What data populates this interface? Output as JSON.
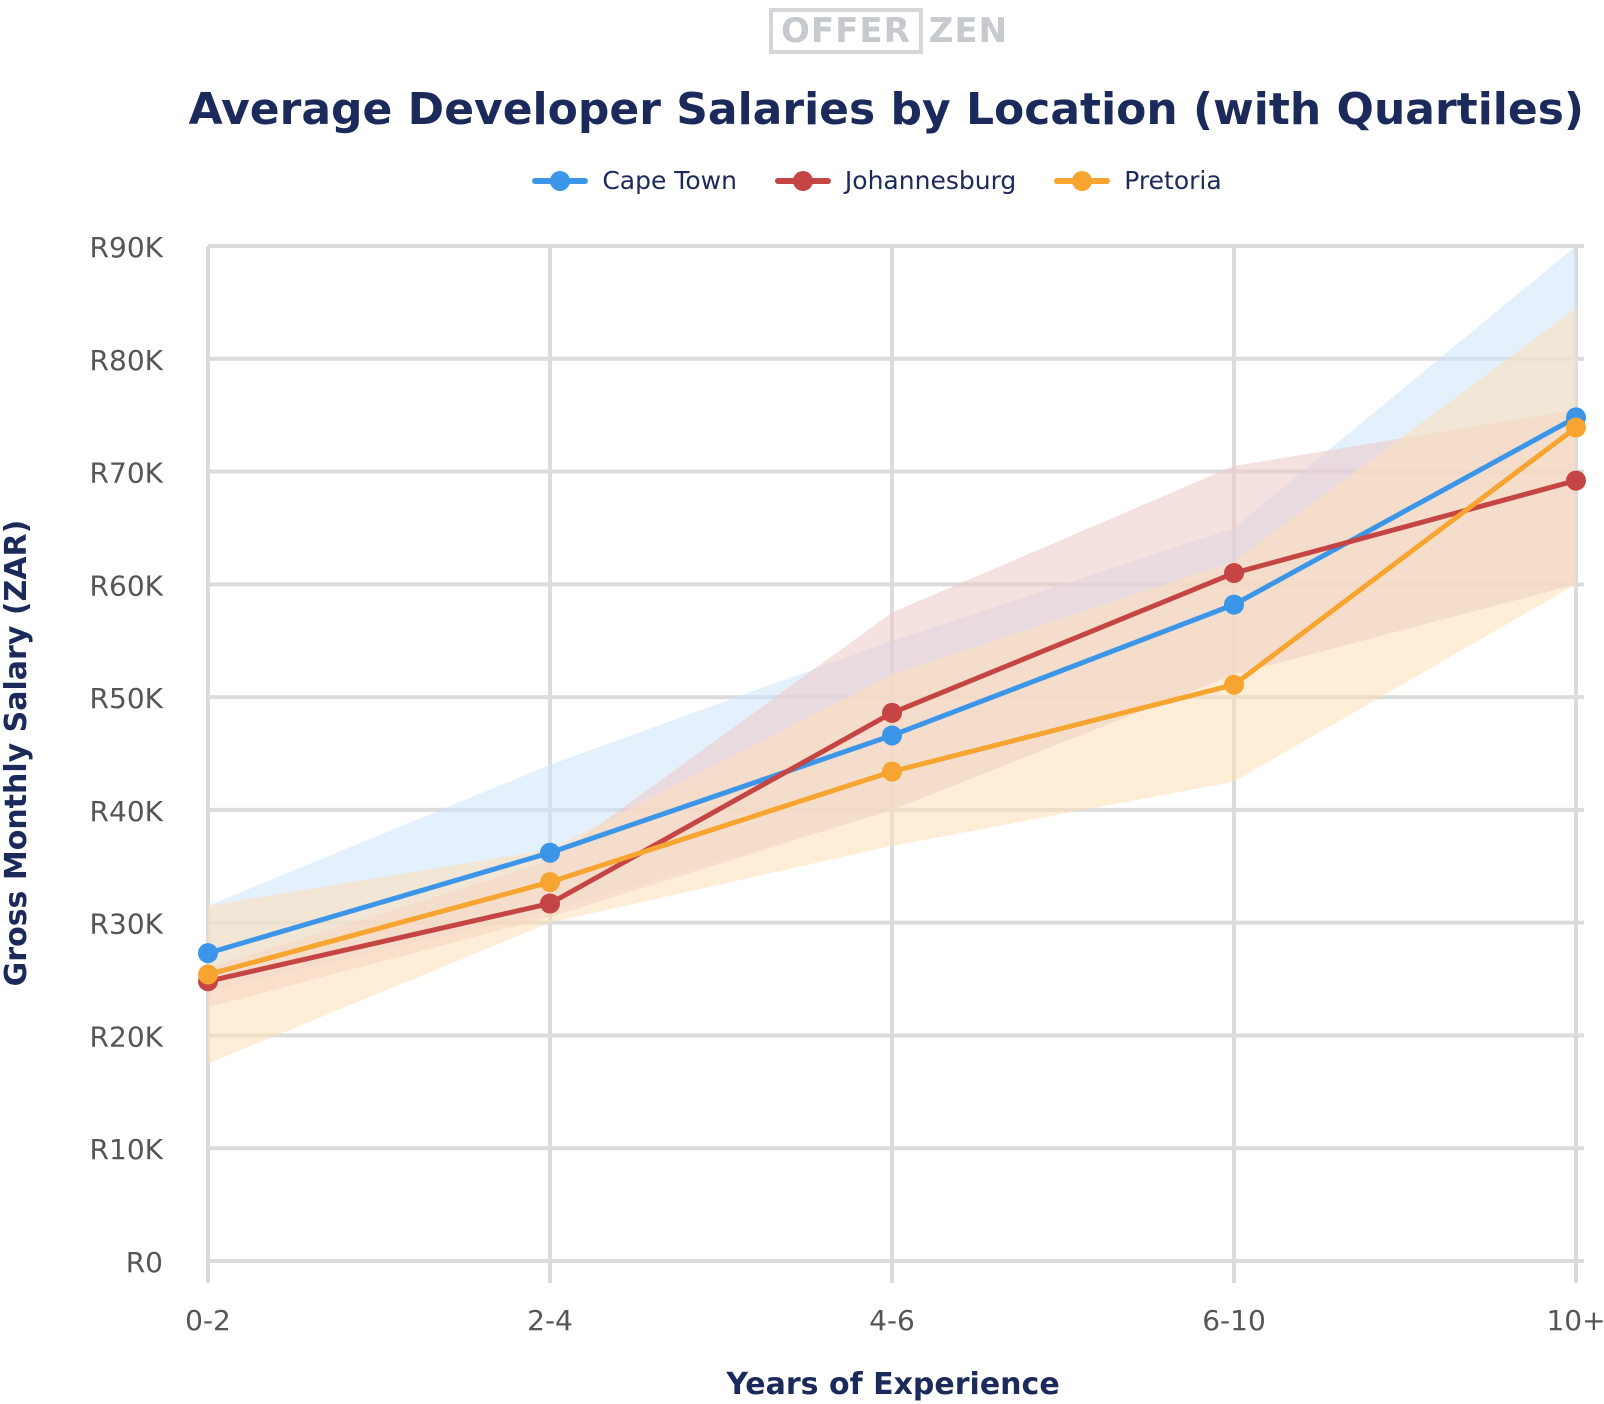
{
  "logo": {
    "boxed": "OFFER",
    "plain": "ZEN"
  },
  "chart_data": {
    "type": "line",
    "title": "Average Developer Salaries by Location (with Quartiles)",
    "xlabel": "Years of Experience",
    "ylabel": "Gross Monthly Salary (ZAR)",
    "categories": [
      "0-2",
      "2-4",
      "4-6",
      "6-10",
      "10+"
    ],
    "ylim": [
      0,
      90000
    ],
    "yticks": [
      0,
      10000,
      20000,
      30000,
      40000,
      50000,
      60000,
      70000,
      80000,
      90000
    ],
    "ytick_labels": [
      "R0",
      "R10K",
      "R20K",
      "R30K",
      "R40K",
      "R50K",
      "R60K",
      "R70K",
      "R80K",
      "R90K"
    ],
    "grid": true,
    "legend_position": "top-center",
    "series": [
      {
        "name": "Cape Town",
        "color": "#3b95e8",
        "band_color": "#cfe4fb",
        "values": [
          27300,
          36200,
          46600,
          58200,
          74800
        ],
        "q1": [
          24000,
          31000,
          40000,
          52000,
          60000
        ],
        "q3": [
          31500,
          44000,
          55000,
          65000,
          90000
        ]
      },
      {
        "name": "Johannesburg",
        "color": "#c54444",
        "band_color": "#ecc8c6",
        "values": [
          24800,
          31700,
          48600,
          61000,
          69200
        ],
        "q1": [
          22500,
          30500,
          40000,
          52000,
          60000
        ],
        "q3": [
          26000,
          35500,
          57500,
          70500,
          75500
        ]
      },
      {
        "name": "Pretoria",
        "color": "#f7a530",
        "band_color": "#fde0b8",
        "values": [
          25400,
          33600,
          43400,
          51100,
          73900
        ],
        "q1": [
          17500,
          30000,
          36800,
          42500,
          60000
        ],
        "q3": [
          31500,
          36500,
          52000,
          62000,
          84500
        ]
      }
    ]
  }
}
